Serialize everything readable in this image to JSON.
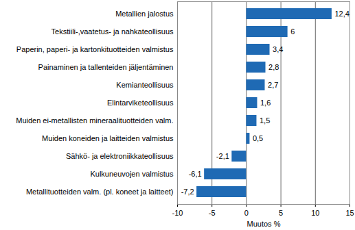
{
  "chart_data": {
    "type": "bar",
    "orientation": "horizontal",
    "categories": [
      "Metallien jalostus",
      "Tekstiili-,vaatetus- ja nahkateollisuus",
      "Paperin, paperi- ja kartonkituotteiden valmistus",
      "Painaminen ja tallenteiden jäljentäminen",
      "Kemianteollisuus",
      "Elintarviketeollisuus",
      "Muiden ei-metallisten mineraalituotteiden valm.",
      "Muiden koneiden ja laitteiden valmistus",
      "Sähkö- ja elektroniikkateollisuus",
      "Kulkuneuvojen valmistus",
      "Metallituotteiden valm. (pl. koneet ja laitteet)"
    ],
    "values": [
      12.4,
      6,
      3.4,
      2.8,
      2.7,
      1.6,
      1.5,
      0.5,
      -2.1,
      -6.1,
      -7.2
    ],
    "value_labels": [
      "12,4",
      "6",
      "3,4",
      "2,8",
      "2,7",
      "1,6",
      "1,5",
      "0,5",
      "-2,1",
      "-6,1",
      "-7,2"
    ],
    "color": "#1f6ab4",
    "xlabel": "Muutos %",
    "xlim": [
      -10,
      15
    ],
    "xticks": [
      -10,
      -5,
      0,
      5,
      10,
      15
    ],
    "grid": true,
    "data_labels": true
  }
}
